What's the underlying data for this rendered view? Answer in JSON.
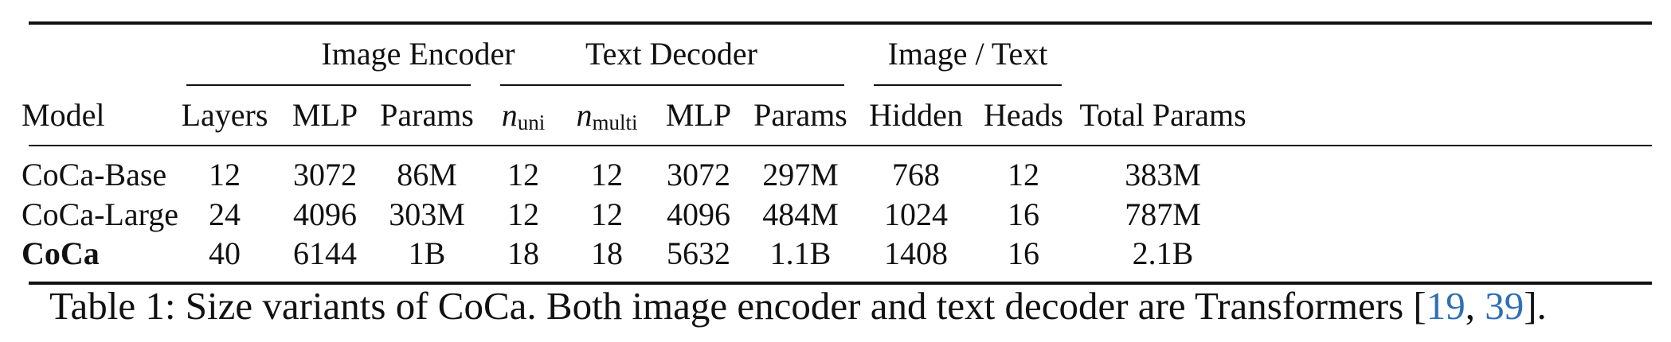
{
  "groups": {
    "image_encoder": "Image Encoder",
    "text_decoder": "Text Decoder",
    "image_text": "Image / Text"
  },
  "columns": {
    "model": "Model",
    "ie_layers": "Layers",
    "ie_mlp": "MLP",
    "ie_params": "Params",
    "td_nuni": {
      "base": "n",
      "sub": "uni"
    },
    "td_nmulti": {
      "base": "n",
      "sub": "multi"
    },
    "td_mlp": "MLP",
    "td_params": "Params",
    "it_hidden": "Hidden",
    "it_heads": "Heads",
    "total": "Total Params"
  },
  "rows": [
    [
      "CoCa-Base",
      "12",
      "3072",
      "86M",
      "12",
      "12",
      "3072",
      "297M",
      "768",
      "12",
      "383M"
    ],
    [
      "CoCa-Large",
      "24",
      "4096",
      "303M",
      "12",
      "12",
      "4096",
      "484M",
      "1024",
      "16",
      "787M"
    ],
    [
      "CoCa",
      "40",
      "6144",
      "1B",
      "18",
      "18",
      "5632",
      "1.1B",
      "1408",
      "16",
      "2.1B"
    ]
  ],
  "caption": {
    "prefix": "Table 1:  Size variants of CoCa. Both image encoder and text decoder are Transformers [",
    "ref1": "19",
    "sep": ", ",
    "ref2": "39",
    "suffix": "]."
  },
  "colors": {
    "text": "#111111",
    "reference_link": "#2f6fb5"
  }
}
